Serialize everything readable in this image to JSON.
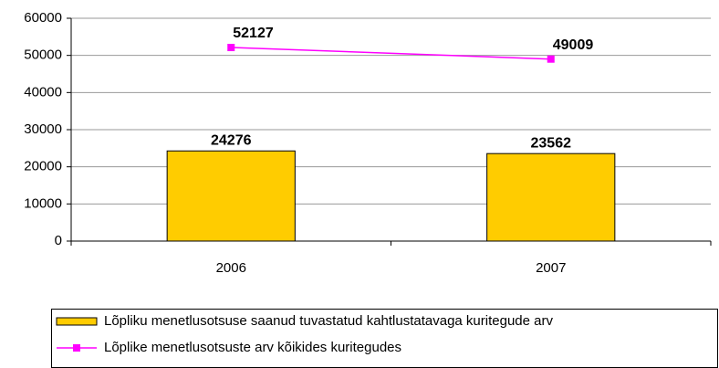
{
  "chart_data": {
    "type": "bar",
    "categories": [
      "2006",
      "2007"
    ],
    "series": [
      {
        "name": "Lõpliku menetlusotsuse saanud tuvastatud kahtlustatavaga kuritegude arv",
        "type": "bar",
        "color": "#FFCC00",
        "values": [
          24276,
          23562
        ]
      },
      {
        "name": "Lõplike menetlusotsuste arv kõikides kuritegudes",
        "type": "line",
        "color": "#FF00FF",
        "values": [
          52127,
          49009
        ]
      }
    ],
    "ylim": [
      0,
      60000
    ],
    "yticks": [
      0,
      10000,
      20000,
      30000,
      40000,
      50000,
      60000
    ],
    "grid": true,
    "legend": "bottom"
  }
}
